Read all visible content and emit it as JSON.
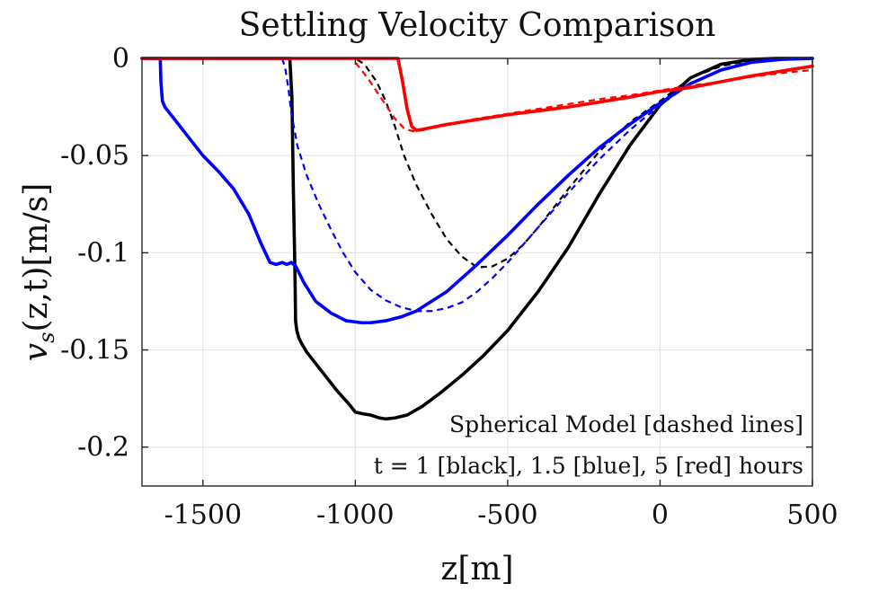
{
  "chart_data": {
    "type": "line",
    "title": "Settling Velocity Comparison",
    "xlabel": "z[m]",
    "ylabel": "v_s(z,t)[m/s]",
    "ylabel_main": "v",
    "ylabel_sub": "s",
    "ylabel_rest": "(z,t)[m/s]",
    "xlim": [
      -1700,
      500
    ],
    "ylim": [
      -0.22,
      0
    ],
    "xticks": [
      -1500,
      -1000,
      -500,
      0,
      500
    ],
    "xtick_labels": [
      "-1500",
      "-1000",
      "-500",
      "0",
      "500"
    ],
    "yticks": [
      0,
      -0.05,
      -0.1,
      -0.15,
      -0.2
    ],
    "ytick_labels": [
      "0",
      "-0.05",
      "-0.1",
      "-0.15",
      "-0.2"
    ],
    "grid": true,
    "annotations": [
      "Spherical Model [dashed lines]",
      "t = 1 [black], 1.5 [blue], 5 [red] hours"
    ],
    "series": [
      {
        "color": "#000000",
        "style": "solid",
        "x": [
          -1700,
          -1215,
          -1208,
          -1203,
          -1198,
          -1196,
          -1192,
          -1185,
          -1175,
          -1160,
          -1130,
          -1100,
          -1060,
          -1020,
          -1000,
          -970,
          -950,
          -920,
          -900,
          -870,
          -830,
          -780,
          -720,
          -650,
          -580,
          -500,
          -400,
          -300,
          -200,
          -100,
          0,
          100,
          200,
          300,
          380,
          450,
          500
        ],
        "y": [
          0,
          0,
          -0.02,
          -0.07,
          -0.11,
          -0.135,
          -0.14,
          -0.144,
          -0.147,
          -0.151,
          -0.157,
          -0.163,
          -0.171,
          -0.178,
          -0.182,
          -0.183,
          -0.1835,
          -0.185,
          -0.1855,
          -0.185,
          -0.1835,
          -0.179,
          -0.172,
          -0.163,
          -0.153,
          -0.14,
          -0.12,
          -0.097,
          -0.07,
          -0.045,
          -0.024,
          -0.01,
          -0.003,
          -0.0005,
          0,
          0,
          0
        ]
      },
      {
        "color": "#000000",
        "style": "dashed",
        "x": [
          -1700,
          -1000,
          -970,
          -930,
          -900,
          -870,
          -840,
          -800,
          -750,
          -700,
          -650,
          -600,
          -550,
          -500,
          -450,
          -400,
          -350,
          -300,
          -200,
          -100,
          0,
          100,
          200,
          300,
          400,
          500
        ],
        "y": [
          0,
          0,
          -0.003,
          -0.012,
          -0.022,
          -0.035,
          -0.05,
          -0.065,
          -0.08,
          -0.093,
          -0.102,
          -0.1075,
          -0.107,
          -0.103,
          -0.096,
          -0.087,
          -0.077,
          -0.067,
          -0.048,
          -0.033,
          -0.022,
          -0.01,
          -0.004,
          -0.001,
          0,
          0
        ]
      },
      {
        "color": "#0000ff",
        "style": "solid",
        "x": [
          -1700,
          -1640,
          -1638,
          -1633,
          -1625,
          -1600,
          -1550,
          -1500,
          -1450,
          -1400,
          -1350,
          -1310,
          -1280,
          -1260,
          -1240,
          -1225,
          -1210,
          -1195,
          -1170,
          -1130,
          -1080,
          -1030,
          -980,
          -950,
          -900,
          -850,
          -800,
          -700,
          -600,
          -500,
          -400,
          -300,
          -200,
          -100,
          0,
          100,
          200,
          300,
          400,
          500
        ],
        "y": [
          0,
          0,
          -0.012,
          -0.022,
          -0.025,
          -0.03,
          -0.04,
          -0.05,
          -0.058,
          -0.067,
          -0.08,
          -0.095,
          -0.105,
          -0.106,
          -0.105,
          -0.106,
          -0.105,
          -0.107,
          -0.115,
          -0.125,
          -0.131,
          -0.135,
          -0.136,
          -0.136,
          -0.135,
          -0.133,
          -0.13,
          -0.12,
          -0.106,
          -0.091,
          -0.075,
          -0.06,
          -0.046,
          -0.034,
          -0.023,
          -0.013,
          -0.006,
          -0.002,
          -0.0005,
          0
        ]
      },
      {
        "color": "#0000ff",
        "style": "dashed",
        "x": [
          -1700,
          -1240,
          -1230,
          -1220,
          -1210,
          -1190,
          -1160,
          -1120,
          -1080,
          -1040,
          -1000,
          -950,
          -900,
          -850,
          -800,
          -750,
          -700,
          -650,
          -600,
          -550,
          -500,
          -400,
          -300,
          -200,
          -100,
          0,
          100,
          200,
          300,
          400,
          500
        ],
        "y": [
          0,
          0,
          -0.005,
          -0.015,
          -0.028,
          -0.045,
          -0.06,
          -0.075,
          -0.088,
          -0.1,
          -0.11,
          -0.119,
          -0.1245,
          -0.128,
          -0.13,
          -0.13,
          -0.1285,
          -0.1255,
          -0.12,
          -0.113,
          -0.105,
          -0.087,
          -0.069,
          -0.052,
          -0.037,
          -0.024,
          -0.013,
          -0.006,
          -0.002,
          -0.0005,
          0
        ]
      },
      {
        "color": "#ff0000",
        "style": "solid",
        "x": [
          -1700,
          -860,
          -845,
          -830,
          -815,
          -800,
          -780,
          -700,
          -600,
          -500,
          -400,
          -300,
          -200,
          -100,
          0,
          100,
          200,
          300,
          400,
          500
        ],
        "y": [
          0,
          0,
          -0.012,
          -0.026,
          -0.035,
          -0.037,
          -0.0365,
          -0.034,
          -0.0315,
          -0.029,
          -0.027,
          -0.025,
          -0.0225,
          -0.02,
          -0.017,
          -0.015,
          -0.012,
          -0.009,
          -0.0065,
          -0.004
        ]
      },
      {
        "color": "#ff0000",
        "style": "dashed",
        "x": [
          -1700,
          -1010,
          -990,
          -960,
          -930,
          -900,
          -870,
          -840,
          -810,
          -780,
          -700,
          -600,
          -500,
          -400,
          -300,
          -200,
          -100,
          0,
          100,
          200,
          300,
          400,
          500
        ],
        "y": [
          0,
          0,
          -0.004,
          -0.01,
          -0.017,
          -0.024,
          -0.031,
          -0.036,
          -0.0375,
          -0.037,
          -0.034,
          -0.031,
          -0.0285,
          -0.026,
          -0.0235,
          -0.021,
          -0.019,
          -0.0165,
          -0.014,
          -0.012,
          -0.0095,
          -0.0075,
          -0.006
        ]
      }
    ]
  }
}
